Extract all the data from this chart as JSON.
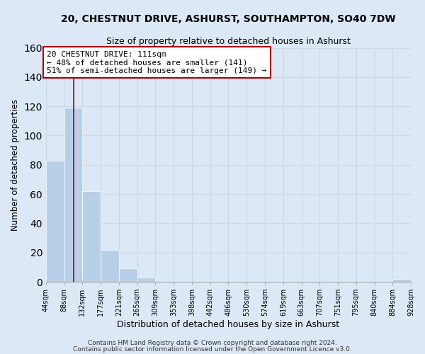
{
  "title": "20, CHESTNUT DRIVE, ASHURST, SOUTHAMPTON, SO40 7DW",
  "subtitle": "Size of property relative to detached houses in Ashurst",
  "xlabel": "Distribution of detached houses by size in Ashurst",
  "ylabel": "Number of detached properties",
  "bin_edges": [
    44,
    88,
    132,
    177,
    221,
    265,
    309,
    353,
    398,
    442,
    486,
    530,
    574,
    619,
    663,
    707,
    751,
    795,
    840,
    884,
    928
  ],
  "bar_heights": [
    83,
    119,
    62,
    22,
    9,
    3,
    0,
    0,
    0,
    0,
    0,
    0,
    0,
    0,
    0,
    0,
    0,
    0,
    0,
    2
  ],
  "bar_color": "#b8cfe8",
  "bar_edge_color": "#ffffff",
  "property_line_x": 111,
  "ylim": [
    0,
    160
  ],
  "yticks": [
    0,
    20,
    40,
    60,
    80,
    100,
    120,
    140,
    160
  ],
  "annotation_line1": "20 CHESTNUT DRIVE: 111sqm",
  "annotation_line2": "← 48% of detached houses are smaller (141)",
  "annotation_line3": "51% of semi-detached houses are larger (149) →",
  "annotation_box_color": "#ffffff",
  "annotation_box_edge_color": "#aa0000",
  "property_line_color": "#aa0000",
  "footer_line1": "Contains HM Land Registry data © Crown copyright and database right 2024.",
  "footer_line2": "Contains public sector information licensed under the Open Government Licence v3.0.",
  "background_color": "#dce8f5",
  "plot_background_color": "#dce8f5",
  "tick_labels": [
    "44sqm",
    "88sqm",
    "132sqm",
    "177sqm",
    "221sqm",
    "265sqm",
    "309sqm",
    "353sqm",
    "398sqm",
    "442sqm",
    "486sqm",
    "530sqm",
    "574sqm",
    "619sqm",
    "663sqm",
    "707sqm",
    "751sqm",
    "795sqm",
    "840sqm",
    "884sqm",
    "928sqm"
  ],
  "grid_color": "#c8d8e8",
  "title_fontsize": 10,
  "subtitle_fontsize": 9
}
